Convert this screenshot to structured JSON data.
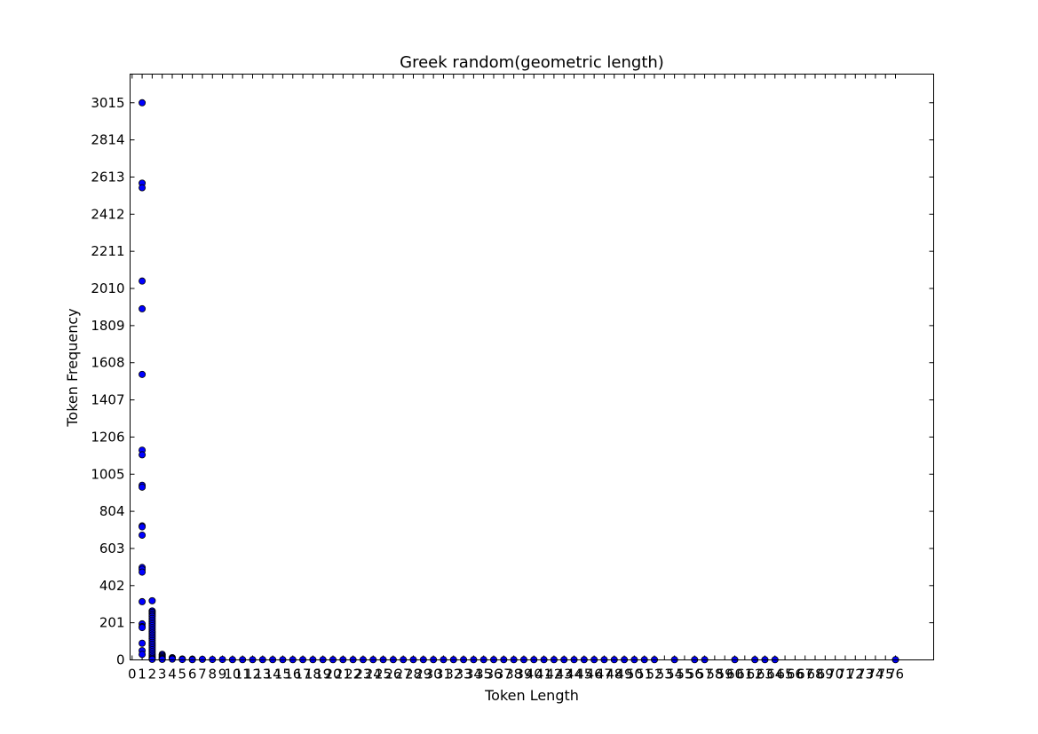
{
  "chart_data": {
    "type": "scatter",
    "title": "Greek random(geometric length)",
    "xlabel": "Token Length",
    "ylabel": "Token Frequency",
    "xlim": [
      -0.2,
      79.8
    ],
    "ylim": [
      0,
      3170
    ],
    "grid": false,
    "marker_color": "#0000ff",
    "marker_edge_color": "#000000",
    "x_ticks": [
      0,
      1,
      2,
      3,
      4,
      5,
      6,
      7,
      8,
      9,
      10,
      11,
      12,
      13,
      14,
      15,
      16,
      17,
      18,
      19,
      20,
      21,
      22,
      23,
      24,
      25,
      26,
      27,
      28,
      29,
      30,
      31,
      32,
      33,
      34,
      35,
      36,
      37,
      38,
      39,
      40,
      41,
      42,
      43,
      44,
      45,
      46,
      47,
      48,
      49,
      50,
      51,
      52,
      53,
      54,
      55,
      56,
      57,
      58,
      59,
      60,
      61,
      62,
      63,
      64,
      65,
      66,
      67,
      68,
      69,
      70,
      71,
      72,
      73,
      74,
      75,
      76
    ],
    "y_ticks": [
      0,
      201,
      402,
      603,
      804,
      1005,
      1206,
      1407,
      1608,
      1809,
      2010,
      2211,
      2412,
      2613,
      2814,
      3015
    ],
    "points": [
      {
        "x": 1,
        "y": 3015
      },
      {
        "x": 1,
        "y": 2580
      },
      {
        "x": 1,
        "y": 2555
      },
      {
        "x": 1,
        "y": 2050
      },
      {
        "x": 1,
        "y": 1900
      },
      {
        "x": 1,
        "y": 1545
      },
      {
        "x": 1,
        "y": 1135
      },
      {
        "x": 1,
        "y": 1110
      },
      {
        "x": 1,
        "y": 945
      },
      {
        "x": 1,
        "y": 935
      },
      {
        "x": 1,
        "y": 725
      },
      {
        "x": 1,
        "y": 720
      },
      {
        "x": 1,
        "y": 675
      },
      {
        "x": 1,
        "y": 500
      },
      {
        "x": 1,
        "y": 490
      },
      {
        "x": 1,
        "y": 475
      },
      {
        "x": 1,
        "y": 315
      },
      {
        "x": 1,
        "y": 195
      },
      {
        "x": 1,
        "y": 180
      },
      {
        "x": 1,
        "y": 175
      },
      {
        "x": 1,
        "y": 90
      },
      {
        "x": 1,
        "y": 50
      },
      {
        "x": 1,
        "y": 30
      },
      {
        "x": 2,
        "y": 320
      },
      {
        "x": 2,
        "y": 265
      },
      {
        "x": 2,
        "y": 258
      },
      {
        "x": 2,
        "y": 250
      },
      {
        "x": 2,
        "y": 242
      },
      {
        "x": 2,
        "y": 235
      },
      {
        "x": 2,
        "y": 225
      },
      {
        "x": 2,
        "y": 215
      },
      {
        "x": 2,
        "y": 205
      },
      {
        "x": 2,
        "y": 195
      },
      {
        "x": 2,
        "y": 185
      },
      {
        "x": 2,
        "y": 175
      },
      {
        "x": 2,
        "y": 165
      },
      {
        "x": 2,
        "y": 155
      },
      {
        "x": 2,
        "y": 145
      },
      {
        "x": 2,
        "y": 135
      },
      {
        "x": 2,
        "y": 125
      },
      {
        "x": 2,
        "y": 115
      },
      {
        "x": 2,
        "y": 105
      },
      {
        "x": 2,
        "y": 95
      },
      {
        "x": 2,
        "y": 85
      },
      {
        "x": 2,
        "y": 75
      },
      {
        "x": 2,
        "y": 65
      },
      {
        "x": 2,
        "y": 55
      },
      {
        "x": 2,
        "y": 45
      },
      {
        "x": 2,
        "y": 35
      },
      {
        "x": 2,
        "y": 25
      },
      {
        "x": 2,
        "y": 15
      },
      {
        "x": 2,
        "y": 8
      },
      {
        "x": 2,
        "y": 3
      },
      {
        "x": 3,
        "y": 30
      },
      {
        "x": 3,
        "y": 24
      },
      {
        "x": 3,
        "y": 18
      },
      {
        "x": 3,
        "y": 12
      },
      {
        "x": 3,
        "y": 7
      },
      {
        "x": 3,
        "y": 3
      },
      {
        "x": 4,
        "y": 12
      },
      {
        "x": 4,
        "y": 8
      },
      {
        "x": 4,
        "y": 4
      },
      {
        "x": 5,
        "y": 5
      },
      {
        "x": 5,
        "y": 2
      },
      {
        "x": 6,
        "y": 4
      },
      {
        "x": 6,
        "y": 1
      },
      {
        "x": 7,
        "y": 3
      },
      {
        "x": 8,
        "y": 2
      },
      {
        "x": 9,
        "y": 2
      },
      {
        "x": 10,
        "y": 1
      },
      {
        "x": 11,
        "y": 1
      },
      {
        "x": 12,
        "y": 1
      },
      {
        "x": 13,
        "y": 1
      },
      {
        "x": 14,
        "y": 1
      },
      {
        "x": 15,
        "y": 1
      },
      {
        "x": 16,
        "y": 1
      },
      {
        "x": 17,
        "y": 1
      },
      {
        "x": 18,
        "y": 1
      },
      {
        "x": 19,
        "y": 1
      },
      {
        "x": 20,
        "y": 1
      },
      {
        "x": 21,
        "y": 1
      },
      {
        "x": 22,
        "y": 1
      },
      {
        "x": 23,
        "y": 1
      },
      {
        "x": 24,
        "y": 1
      },
      {
        "x": 25,
        "y": 1
      },
      {
        "x": 26,
        "y": 1
      },
      {
        "x": 27,
        "y": 1
      },
      {
        "x": 28,
        "y": 1
      },
      {
        "x": 29,
        "y": 1
      },
      {
        "x": 30,
        "y": 1
      },
      {
        "x": 31,
        "y": 1
      },
      {
        "x": 32,
        "y": 1
      },
      {
        "x": 33,
        "y": 1
      },
      {
        "x": 34,
        "y": 1
      },
      {
        "x": 35,
        "y": 1
      },
      {
        "x": 36,
        "y": 1
      },
      {
        "x": 37,
        "y": 1
      },
      {
        "x": 38,
        "y": 1
      },
      {
        "x": 39,
        "y": 1
      },
      {
        "x": 40,
        "y": 1
      },
      {
        "x": 41,
        "y": 1
      },
      {
        "x": 42,
        "y": 1
      },
      {
        "x": 43,
        "y": 1
      },
      {
        "x": 44,
        "y": 1
      },
      {
        "x": 45,
        "y": 1
      },
      {
        "x": 46,
        "y": 1
      },
      {
        "x": 47,
        "y": 1
      },
      {
        "x": 48,
        "y": 1
      },
      {
        "x": 49,
        "y": 1
      },
      {
        "x": 50,
        "y": 1
      },
      {
        "x": 51,
        "y": 1
      },
      {
        "x": 52,
        "y": 1
      },
      {
        "x": 54,
        "y": 1
      },
      {
        "x": 56,
        "y": 1
      },
      {
        "x": 57,
        "y": 1
      },
      {
        "x": 60,
        "y": 1
      },
      {
        "x": 62,
        "y": 1
      },
      {
        "x": 63,
        "y": 1
      },
      {
        "x": 64,
        "y": 1
      },
      {
        "x": 76,
        "y": 1
      }
    ]
  }
}
